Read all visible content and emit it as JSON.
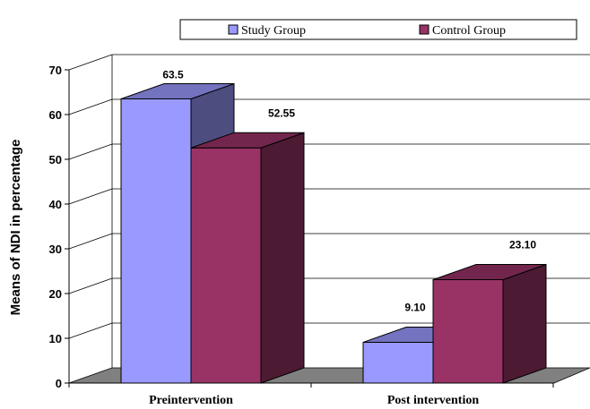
{
  "chart_data": {
    "type": "bar",
    "categories": [
      "Preintervention",
      "Post intervention"
    ],
    "series": [
      {
        "name": "Study Group",
        "values": [
          63.5,
          9.1
        ],
        "labels": [
          "63.5",
          "9.10"
        ],
        "color": "#9999FF",
        "side_color": "#4D4D80",
        "top_color": "#7373C0"
      },
      {
        "name": "Control Group",
        "values": [
          52.55,
          23.1
        ],
        "labels": [
          "52.55",
          "23.10"
        ],
        "color": "#993366",
        "side_color": "#4D1A33",
        "top_color": "#73264D"
      }
    ],
    "xlabel": "",
    "ylabel": "Means of NDI in percentage",
    "ylim": [
      0,
      70
    ],
    "yticks": [
      "0",
      "10",
      "20",
      "30",
      "40",
      "50",
      "60",
      "70"
    ],
    "grid": true,
    "legend_position": "top",
    "style": "3d-column",
    "floor_color": "#808080"
  }
}
